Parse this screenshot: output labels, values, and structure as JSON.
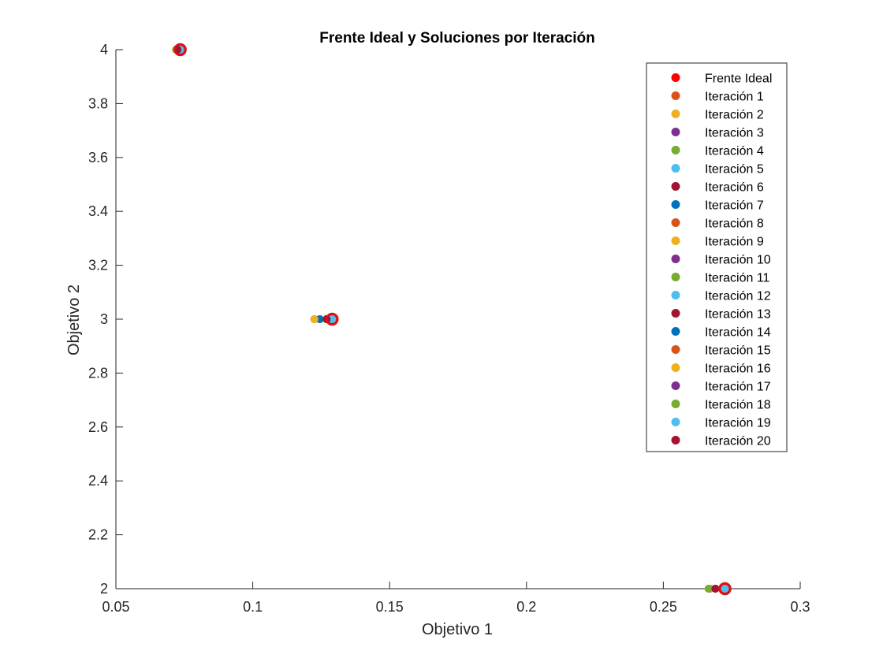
{
  "chart_data": {
    "type": "scatter",
    "title": "Frente Ideal y Soluciones por Iteración",
    "xlabel": "Objetivo 1",
    "ylabel": "Objetivo 2",
    "xlim": [
      0.05,
      0.3
    ],
    "ylim": [
      2,
      4
    ],
    "xticks": [
      "0.05",
      "0.1",
      "0.15",
      "0.2",
      "0.25",
      "0.3"
    ],
    "yticks": [
      "2",
      "2.2",
      "2.4",
      "2.6",
      "2.8",
      "3",
      "3.2",
      "3.4",
      "3.6",
      "3.8",
      "4"
    ],
    "grid": false,
    "legend_position": "top-right",
    "series": [
      {
        "name": "Frente Ideal",
        "color": "#FF0000",
        "marker": "ring",
        "points": [
          [
            0.0735,
            4
          ],
          [
            0.129,
            3
          ],
          [
            0.2725,
            2
          ]
        ]
      },
      {
        "name": "Iteración 1",
        "color": "#D95319",
        "points": [
          [
            0.0725,
            4
          ],
          [
            0.1225,
            3
          ],
          [
            0.267,
            2
          ]
        ]
      },
      {
        "name": "Iteración 2",
        "color": "#EDB120",
        "points": [
          [
            0.0725,
            4
          ],
          [
            0.1245,
            3
          ],
          [
            0.267,
            2
          ]
        ]
      },
      {
        "name": "Iteración 3",
        "color": "#7E2F8E",
        "points": [
          [
            0.0725,
            4
          ],
          [
            0.1245,
            3
          ],
          [
            0.267,
            2
          ]
        ]
      },
      {
        "name": "Iteración 4",
        "color": "#77AC30",
        "points": [
          [
            0.0725,
            4
          ],
          [
            0.1245,
            3
          ],
          [
            0.267,
            2
          ]
        ]
      },
      {
        "name": "Iteración 5",
        "color": "#4DBEEE",
        "points": [
          [
            0.0725,
            4
          ],
          [
            0.1245,
            3
          ],
          [
            0.267,
            2
          ]
        ]
      },
      {
        "name": "Iteración 6",
        "color": "#A2142F",
        "points": [
          [
            0.0725,
            4
          ],
          [
            0.1245,
            3
          ],
          [
            0.269,
            2
          ]
        ]
      },
      {
        "name": "Iteración 7",
        "color": "#0072BD",
        "points": [
          [
            0.0725,
            4
          ],
          [
            0.1245,
            3
          ],
          [
            0.269,
            2
          ]
        ]
      },
      {
        "name": "Iteración 8",
        "color": "#D95319",
        "points": [
          [
            0.0725,
            4
          ],
          [
            0.1245,
            3
          ],
          [
            0.269,
            2
          ]
        ]
      },
      {
        "name": "Iteración 9",
        "color": "#EDB120",
        "points": [
          [
            0.0725,
            4
          ],
          [
            0.1245,
            3
          ],
          [
            0.269,
            2
          ]
        ]
      },
      {
        "name": "Iteración 10",
        "color": "#7E2F8E",
        "points": [
          [
            0.0725,
            4
          ],
          [
            0.127,
            3
          ],
          [
            0.2725,
            2
          ]
        ]
      },
      {
        "name": "Iteración 11",
        "color": "#77AC30",
        "points": [
          [
            0.0725,
            4
          ],
          [
            0.127,
            3
          ],
          [
            0.2725,
            2
          ]
        ]
      },
      {
        "name": "Iteración 12",
        "color": "#4DBEEE",
        "points": [
          [
            0.0735,
            4
          ],
          [
            0.129,
            3
          ],
          [
            0.2725,
            2
          ]
        ]
      },
      {
        "name": "Iteración 13",
        "color": "#A2142F",
        "points": [
          [
            0.0725,
            4
          ],
          [
            0.127,
            3
          ],
          [
            0.269,
            2
          ]
        ]
      },
      {
        "name": "Iteración 14",
        "color": "#0072BD",
        "points": [
          [
            0.072,
            4
          ],
          [
            0.1245,
            3
          ],
          [
            0.269,
            2
          ]
        ]
      },
      {
        "name": "Iteración 15",
        "color": "#D95319",
        "points": [
          [
            0.072,
            4
          ],
          [
            0.1225,
            3
          ],
          [
            0.269,
            2
          ]
        ]
      },
      {
        "name": "Iteración 16",
        "color": "#EDB120",
        "points": [
          [
            0.072,
            4
          ],
          [
            0.1225,
            3
          ],
          [
            0.2665,
            2
          ]
        ]
      },
      {
        "name": "Iteración 17",
        "color": "#7E2F8E",
        "points": [
          [
            0.0725,
            4
          ],
          [
            0.127,
            3
          ],
          [
            0.2725,
            2
          ]
        ]
      },
      {
        "name": "Iteración 18",
        "color": "#77AC30",
        "points": [
          [
            0.072,
            4
          ],
          [
            0.127,
            3
          ],
          [
            0.2665,
            2
          ]
        ]
      },
      {
        "name": "Iteración 19",
        "color": "#4DBEEE",
        "points": [
          [
            0.0735,
            4
          ],
          [
            0.129,
            3
          ],
          [
            0.2725,
            2
          ]
        ]
      },
      {
        "name": "Iteración 20",
        "color": "#A2142F",
        "points": [
          [
            0.0725,
            4
          ],
          [
            0.127,
            3
          ],
          [
            0.269,
            2
          ]
        ]
      }
    ]
  }
}
